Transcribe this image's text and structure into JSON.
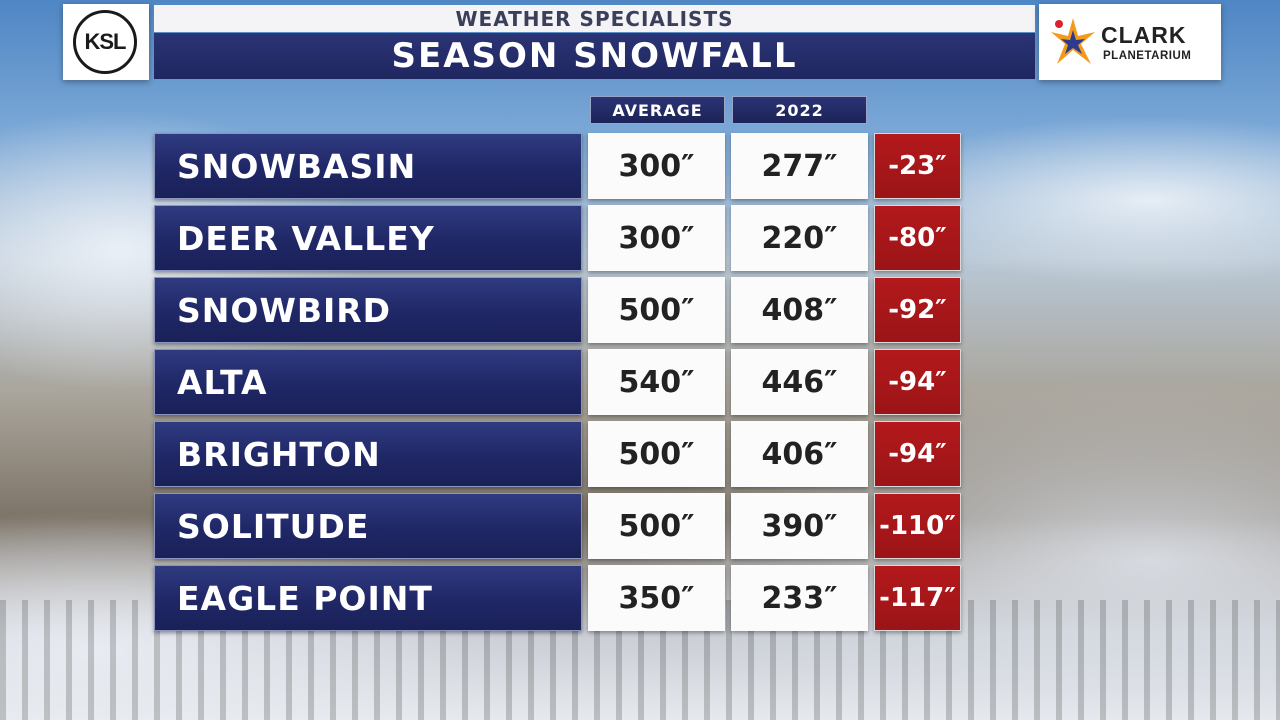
{
  "header": {
    "subtitle": "WEATHER SPECIALISTS",
    "title": "SEASON SNOWFALL"
  },
  "logos": {
    "left": "KSL",
    "right_name": "CLARK",
    "right_sub": "PLANETARIUM"
  },
  "columns": {
    "average": "AVERAGE",
    "year": "2022"
  },
  "colors": {
    "header_navy": "#1f2760",
    "diff_red": "#a3161a"
  },
  "rows": [
    {
      "name": "SNOWBASIN",
      "average": "300″",
      "year": "277″",
      "diff": "-23″"
    },
    {
      "name": "DEER VALLEY",
      "average": "300″",
      "year": "220″",
      "diff": "-80″"
    },
    {
      "name": "SNOWBIRD",
      "average": "500″",
      "year": "408″",
      "diff": "-92″"
    },
    {
      "name": "ALTA",
      "average": "540″",
      "year": "446″",
      "diff": "-94″"
    },
    {
      "name": "BRIGHTON",
      "average": "500″",
      "year": "406″",
      "diff": "-94″"
    },
    {
      "name": "SOLITUDE",
      "average": "500″",
      "year": "390″",
      "diff": "-110″"
    },
    {
      "name": "EAGLE POINT",
      "average": "350″",
      "year": "233″",
      "diff": "-117″"
    }
  ]
}
